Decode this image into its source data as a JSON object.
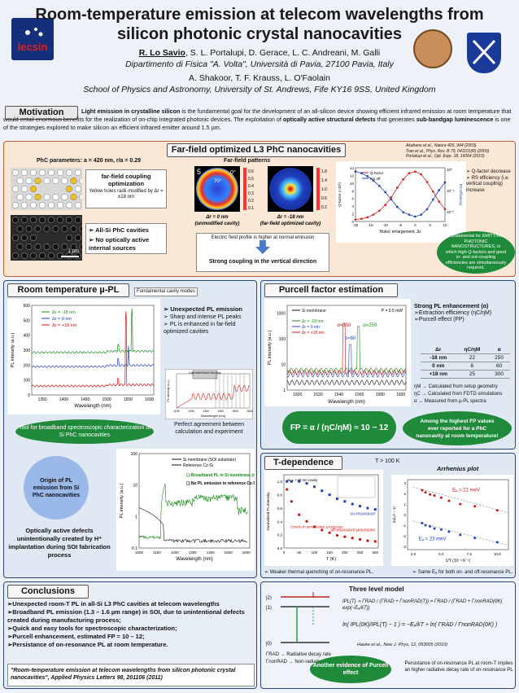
{
  "header": {
    "title_line1": "Room-temperature emission at telecom wavelengths from",
    "title_line2": "silicon photonic crystal nanocavities",
    "authors1_lead": "R. Lo Savio",
    "authors1_rest": ", S. L. Portalupi, D. Gerace, L. C. Andreani, M. Galli",
    "affil1": "Dipartimento di Fisica \"A. Volta\", Università di Pavia, 27100 Pavia, Italy",
    "authors2": "A. Shakoor, T. F. Krauss, L. O'Faolain",
    "affil2": "School of Physics and Astronomy, University of St. Andrews, Fife KY16 9SS, United Kingdom",
    "logo_left": "lecsin"
  },
  "motivation": {
    "heading": "Motivation",
    "text_a": "Light emission in crystalline silicon",
    "text_b": " is the fundamental goal for the development of an all-silicon device showing efficient infrared emission at room temperature that would entail enormous benefits for the realization of on-chip integrated photonic devices. The exploitation of ",
    "text_c": "optically active structural defects",
    "text_d": " that generates ",
    "text_e": "sub-bandgap luminescence",
    "text_f": " is one of the strategies explored to make silicon an efficient infrared emitter around 1.5 µm."
  },
  "farfield": {
    "heading": "Far-field optimized L3 PhC nanocavities",
    "params": "PhC parameters: a = 420 nm, r/a = 0.29",
    "ff_title": "Far-field patterns",
    "opt_title": "far-field coupling optimization",
    "opt_sub": "Yellow holes radii modified by Δr = ±18 nm",
    "cav_b1": "All-Si PhC cavities",
    "cav_b2": "No optically active internal sources",
    "scale": "1 µm",
    "p1_num": "5",
    "p1_zero": "0°",
    "p1_angle": "70°",
    "p1_cap1": "Δr = 0 nm",
    "p1_cap2": "(unmodified cavity)",
    "p2_cap1": "Δr = -18 nm",
    "p2_cap2": "(far-field optimized cavity)",
    "cb1": [
      "0.6",
      "0.5",
      "0.4",
      "0.3",
      "0.2",
      "0.1"
    ],
    "cb2": [
      "1.8",
      "1.4",
      "1.0",
      "0.6",
      "0.2"
    ],
    "note": "Electric field profile is higher at normal emission",
    "strong": "Strong coupling in the vertical direction",
    "refs": [
      "Akahane et al., Nature 425, 944 (2003)",
      "Tran et al., Phys. Rev. B 79, 041101(R) (2009)",
      "Portalupi et al., Opt. Expr. 18, 16064 (2010)"
    ],
    "q_b1": "Q-factor decrease",
    "q_b2": "RS efficiency (i.e. vertical coupling) increase",
    "q_ylabel": "Q-factor (×10³)",
    "q_ylabel2": "RS Efficiency",
    "q_xlabel": "Holes' enlargement, Δr",
    "q_leg1": "Q-factor",
    "q_leg2": "RS eff.",
    "q_yticks": [
      "14",
      "12",
      "10",
      "8",
      "6",
      "4",
      "2",
      "0"
    ],
    "q_xticks": [
      "-20",
      "-15",
      "-10",
      "-5",
      "0",
      "5",
      "10"
    ],
    "q_rticks": [
      "10⁰",
      "10⁻¹",
      "10⁻²"
    ],
    "ellipse": "Fundamental for EMITTING PHOTONIC NANOSTRUCTURES, in which high Q-factors and good in- and out-coupling efficiencies are simultaneously required."
  },
  "q_chart": {
    "type": "line",
    "x": [
      -20,
      -18,
      -16,
      -14,
      -12,
      -10,
      -8,
      -6,
      -4,
      -2,
      0,
      2,
      4,
      6,
      8,
      10
    ],
    "series": [
      {
        "name": "Q-factor",
        "values": [
          0.5,
          0.7,
          1.1,
          1.8,
          2.8,
          4.3,
          6.3,
          8.8,
          11.0,
          12.6,
          13.0,
          12.3,
          10.3,
          7.8,
          5.2,
          3.2
        ]
      },
      {
        "name": "RS eff.",
        "values": [
          0.7,
          0.6,
          0.45,
          0.3,
          0.18,
          0.1,
          0.05,
          0.025,
          0.015,
          0.012,
          0.01,
          0.012,
          0.02,
          0.05,
          0.12,
          0.25
        ]
      }
    ]
  },
  "rtpl": {
    "heading": "Room temperature µ-PL",
    "fund": "Fundamental cavity modes",
    "leg": [
      "Δr = -18 nm",
      "Δr = 0 nm",
      "Δr = +18 nm"
    ],
    "ylabel": "PL intensity (a.u.)",
    "xlabel": "Wavelength (nm)",
    "yticks": [
      "600",
      "500",
      "400",
      "300",
      "200",
      "100",
      "0"
    ],
    "xticks": [
      "1350",
      "1400",
      "1450",
      "1500",
      "1550",
      "1600"
    ],
    "b1": "Unexpected PL emission",
    "b2": "Sharp and intense PL peaks",
    "b3": "PL is enhanced in far-field optimized cavities",
    "calc": "Calculated band structure",
    "inset_x": "Wavelength (nm)",
    "inset_y": "PL intensity (a.u.)",
    "inset_xt": [
      "1100",
      "1200",
      "1300",
      "1400",
      "1500",
      "1600"
    ],
    "agree": "Perfect agreement between calculation and experiment",
    "tool": "Tool for broadband spectroscopic characterization of Si PhC nanocavities",
    "origin": "Origin of PL emission from Si PhC nanocavities",
    "defects": "Optically active defects unintentionally created by H⁺ implantation during SOI fabrication process",
    "leg2": [
      "Si membrane (SOI substrate)",
      "Reference Cz-Si"
    ],
    "bb1": "Broadband PL in Si-membrane (on SOI);",
    "bb2": "No PL emission in reference Cz-Si.",
    "y2ticks": [
      "100",
      "10",
      "1",
      "0.1"
    ],
    "x2ticks": [
      "1000",
      "1100",
      "1200",
      "1300",
      "1400",
      "1500",
      "1600"
    ],
    "x2label": "Wavelength (nm)",
    "y2label": "PL intensity (a.u.)"
  },
  "rt_chart": {
    "type": "line",
    "x_range": [
      1325,
      1610
    ],
    "ylim": [
      0,
      600
    ],
    "series": [
      {
        "name": "Δr = -18 nm",
        "baseline": 285,
        "peak_at": 1559,
        "peak": 580,
        "color": "#1a8a1a"
      },
      {
        "name": "Δr = 0 nm",
        "baseline": 190,
        "peak_at": 1551,
        "peak": 330,
        "color": "#2040c0"
      },
      {
        "name": "Δr = +18 nm",
        "baseline": 60,
        "peak_at": 1545,
        "peak": 560,
        "color": "#d01010"
      }
    ]
  },
  "purcell": {
    "heading": "Purcell factor estimation",
    "leg": [
      "Si membrane",
      "Δr = -18 nm",
      "Δr = 0 nm",
      "Δr = +18 nm"
    ],
    "power": "P = 0.5 mW",
    "a1": "α=300",
    "a2": "α=250",
    "a3": "α=60",
    "ylabel": "PL intensity (a.u.)",
    "xlabel": "Wavelength (nm)",
    "yticks": [
      "1000",
      "100",
      "10",
      "1"
    ],
    "xticks": [
      "1500",
      "1520",
      "1540",
      "1560",
      "1580",
      "1600"
    ],
    "strong": "Strong PL enhancement (α)",
    "sb1": "Extraction efficiency (ηC/ηM)",
    "sb2": "Purcell effect (FP)",
    "th": [
      "Δr",
      "ηC/ηM",
      "α"
    ],
    "rows": [
      [
        "-18 nm",
        "22",
        "250"
      ],
      [
        "0 nm",
        "6",
        "60"
      ],
      [
        "+18 nm",
        "25",
        "300"
      ]
    ],
    "n1": "ηM → Calculated from setup geometry",
    "n2": "ηC → Calculated from FDTD simulations",
    "n3": "α → Measured from µ-PL spectra",
    "fp": "FP = α / (ηC/ηM) ≈ 10 − 12",
    "highest": "Among the highest FP values ever reported for a PhC nanocavity at room temperature!"
  },
  "tdep": {
    "heading": "T-dependence",
    "t100": "T > 100 K",
    "arr": "Arrhenius plot",
    "cav": "Δr = +18 nm cavity",
    "on": "on-resonance",
    "off": "off-resonance processes",
    "onset": "Onset of nonradiative processes",
    "ylabel": "Normalized PL intensity",
    "xlabel": "T (K)",
    "yticks": [
      "1.0",
      "0.8",
      "0.6",
      "0.4",
      "0.2",
      "0.0"
    ],
    "xticks": [
      "0",
      "50",
      "100",
      "150",
      "200",
      "250",
      "300"
    ],
    "ea1": "Eₐ = 22 meV",
    "ea2": "Eₐ = 23 meV",
    "aylabel": "ln(I₀/I − 1)",
    "axlabel": "1/T (10⁻³ K⁻¹)",
    "ayticks": [
      "3",
      "2",
      "1",
      "0",
      "-1",
      "-2",
      "-3"
    ],
    "axticks": [
      "2.5",
      "5.0",
      "7.5",
      "10.0"
    ],
    "weaker": "Weaker thermal quenching of on-resonance PL.",
    "same": "Same Eₐ for both on- and off-resonance PL."
  },
  "t_chart": {
    "type": "scatter",
    "series": [
      {
        "name": "on-resonance",
        "x": [
          10,
          25,
          50,
          75,
          100,
          125,
          150,
          175,
          200,
          225,
          250,
          275,
          300
        ],
        "values": [
          1.0,
          1.0,
          1.0,
          0.97,
          0.92,
          0.86,
          0.8,
          0.74,
          0.7,
          0.66,
          0.63,
          0.6,
          0.58
        ]
      },
      {
        "name": "off-resonance",
        "x": [
          10,
          25,
          50,
          75,
          100,
          125,
          150,
          175,
          200,
          225,
          250,
          275,
          300
        ],
        "values": [
          0.88,
          0.7,
          0.5,
          0.4,
          0.32,
          0.27,
          0.23,
          0.19,
          0.17,
          0.15,
          0.13,
          0.11,
          0.1
        ]
      }
    ]
  },
  "arr_chart": {
    "type": "scatter",
    "series": [
      {
        "name": "on",
        "x": [
          3.3,
          3.6,
          4.0,
          4.4,
          5.0,
          5.7,
          6.7,
          8.0,
          10.0
        ],
        "values": [
          2.3,
          2.1,
          1.9,
          1.8,
          1.6,
          1.3,
          1.0,
          0.8,
          0.4
        ]
      },
      {
        "name": "off",
        "x": [
          3.3,
          3.6,
          4.0,
          4.4,
          5.0,
          5.7,
          6.7,
          8.0,
          10.0
        ],
        "values": [
          -0.8,
          -1.0,
          -1.1,
          -1.3,
          -1.4,
          -1.6,
          -1.9,
          -2.2,
          -2.6
        ]
      }
    ]
  },
  "conclusions": {
    "heading": "Conclusions",
    "items": [
      "Unexpected room-T PL in all-Si L3 PhC cavities at telecom wavelengths",
      "Broadband PL emission (1.3 – 1.6 µm range) in SOI, due to unintentional defects created during manufacturing process;",
      "Quick and easy tools for spectroscopic characterization;",
      "Purcell enhancement, estimated FP = 10 – 12;",
      "Persistance of on-resonance PL at room temperature."
    ],
    "ref": "\"Room-temperature emission at telecom wavelengths from silicon photonic crystal nanocavities\", Applied Physics Letters 98, 201106 (2011)"
  },
  "three": {
    "title": "Three level model",
    "l2": "|2⟩",
    "l1": "|1⟩",
    "l0": "|0⟩",
    "rad": "ΓRAD → Radiative decay rate",
    "nonrad": "ΓnonRAD → Non-radiative decay rate",
    "eq1": "IPL(T) ∝ ΓRAD / (ΓRAD + ΓnonRAD(T)) = ΓRAD / (ΓRAD + ΓnonRAD(0K) exp(−Eₐ/kT))",
    "eq2": "ln( IPL(0K)/IPL(T) − 1 ) = −Eₐ/kT + ln( ΓRAD / ΓnonRAD(0K) )",
    "hauke": "Hauke et al., New J. Phys. 12, 053005 (2010)",
    "another": "Another evidence of Purcell effect",
    "persist": "Persistance of on-resonance PL at room-T implies an higher radiative decay rate of on-resonance PL"
  }
}
